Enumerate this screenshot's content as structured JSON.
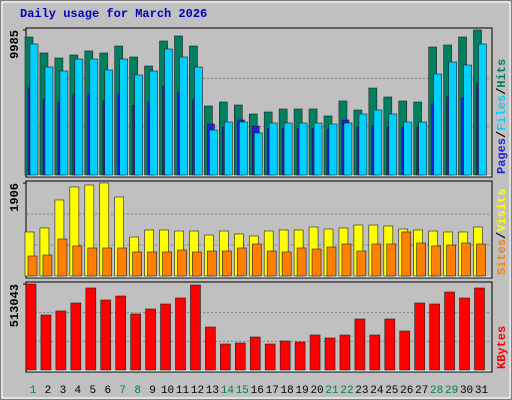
{
  "title": "Daily usage for March 2026",
  "separator": "/",
  "categories": [
    "1",
    "2",
    "3",
    "4",
    "5",
    "6",
    "7",
    "8",
    "9",
    "10",
    "11",
    "12",
    "13",
    "14",
    "15",
    "16",
    "17",
    "18",
    "19",
    "20",
    "21",
    "22",
    "23",
    "24",
    "25",
    "26",
    "27",
    "28",
    "29",
    "30",
    "31"
  ],
  "weekends": [
    0,
    6,
    7,
    13,
    14,
    20,
    21,
    27,
    28
  ],
  "weekend_color": "#008040",
  "day_color": "#000000",
  "chart_data": [
    {
      "type": "bar",
      "ylim": [
        0,
        9985
      ],
      "yticks": [
        9985
      ],
      "grid": true,
      "series": [
        {
          "name": "Hits",
          "color": "#008060",
          "values": [
            9503,
            8401,
            8057,
            8263,
            8539,
            8401,
            8883,
            8126,
            7506,
            9227,
            9572,
            8883,
            4751,
            5027,
            4820,
            4200,
            4338,
            4545,
            4545,
            4545,
            4063,
            5096,
            4476,
            5991,
            5371,
            5096,
            5027,
            8814,
            8952,
            9503,
            9985
          ]
        },
        {
          "name": "Files",
          "color": "#00d0ff",
          "values": [
            9021,
            7437,
            7162,
            7988,
            7988,
            7231,
            7988,
            6886,
            7162,
            8676,
            8126,
            7437,
            3099,
            3650,
            3650,
            2892,
            3581,
            3581,
            3581,
            3581,
            3512,
            3581,
            4200,
            4476,
            4200,
            3650,
            3650,
            6955,
            7781,
            7575,
            9021
          ]
        },
        {
          "name": "Pages",
          "color": "#2020e0",
          "values": [
            6000,
            5200,
            5000,
            5600,
            5600,
            5100,
            5600,
            4800,
            5000,
            6100,
            5700,
            5200,
            3512,
            3300,
            3787,
            3374,
            3200,
            3200,
            3200,
            3200,
            3150,
            3787,
            3300,
            3400,
            3300,
            3300,
            3300,
            4900,
            5400,
            5300,
            6300
          ]
        }
      ]
    },
    {
      "type": "bar",
      "ylim": [
        0,
        1906
      ],
      "yticks": [
        1906
      ],
      "grid": true,
      "series": [
        {
          "name": "Visits",
          "color": "#ffff00",
          "values": [
            902,
            984,
            1558,
            1824,
            1865,
            1906,
            1619,
            799,
            943,
            943,
            922,
            922,
            840,
            922,
            861,
            820,
            922,
            943,
            943,
            1004,
            963,
            984,
            1045,
            1045,
            1025,
            963,
            943,
            922,
            902,
            902,
            1004
          ]
        },
        {
          "name": "Sites",
          "color": "#ff8000",
          "values": [
            410,
            430,
            758,
            615,
            574,
            574,
            574,
            492,
            492,
            492,
            533,
            492,
            512,
            512,
            574,
            656,
            512,
            492,
            574,
            553,
            594,
            656,
            512,
            656,
            656,
            902,
            676,
            615,
            635,
            676,
            656
          ]
        }
      ]
    },
    {
      "type": "bar",
      "ylim": [
        0,
        513043
      ],
      "yticks": [
        513043
      ],
      "grid": true,
      "series": [
        {
          "name": "KBytes",
          "color": "#ff0000",
          "values": [
            513043,
            328108,
            351972,
            399696,
            489181,
            417592,
            441455,
            334074,
            363903,
            393730,
            429523,
            507077,
            256522,
            155106,
            161072,
            196865,
            155106,
            173002,
            167037,
            208797,
            190900,
            208797,
            304245,
            208797,
            304245,
            232659,
            399696,
            393730,
            465318,
            429523,
            489181
          ]
        }
      ]
    }
  ]
}
